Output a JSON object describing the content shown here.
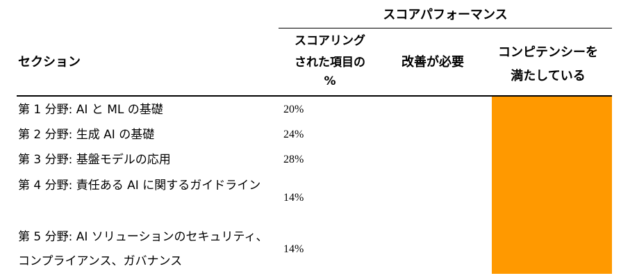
{
  "table": {
    "group_header": "スコアパフォーマンス",
    "columns": {
      "section": "セクション",
      "score_line1": "スコアリング",
      "score_line2": "された項目の",
      "score_line3": "%",
      "improve": "改善が必要",
      "meet_line1": "コンピテンシーを",
      "meet_line2": "満たしている"
    },
    "rows": [
      {
        "section": "第 1 分野: AI と ML の基礎",
        "score": "20%"
      },
      {
        "section": "第 2 分野: 生成 AI の基礎",
        "score": "24%"
      },
      {
        "section": "第 3 分野: 基盤モデルの応用",
        "score": "28%"
      },
      {
        "section": "第 4 分野: 責任ある AI に関するガイドライン",
        "score": "14%"
      },
      {
        "section": "第 5 分野: AI ソリューションのセキュリティ、コンプライアンス、ガバナンス",
        "score": "14%"
      }
    ],
    "meets_competency_color": "#ff9900"
  }
}
